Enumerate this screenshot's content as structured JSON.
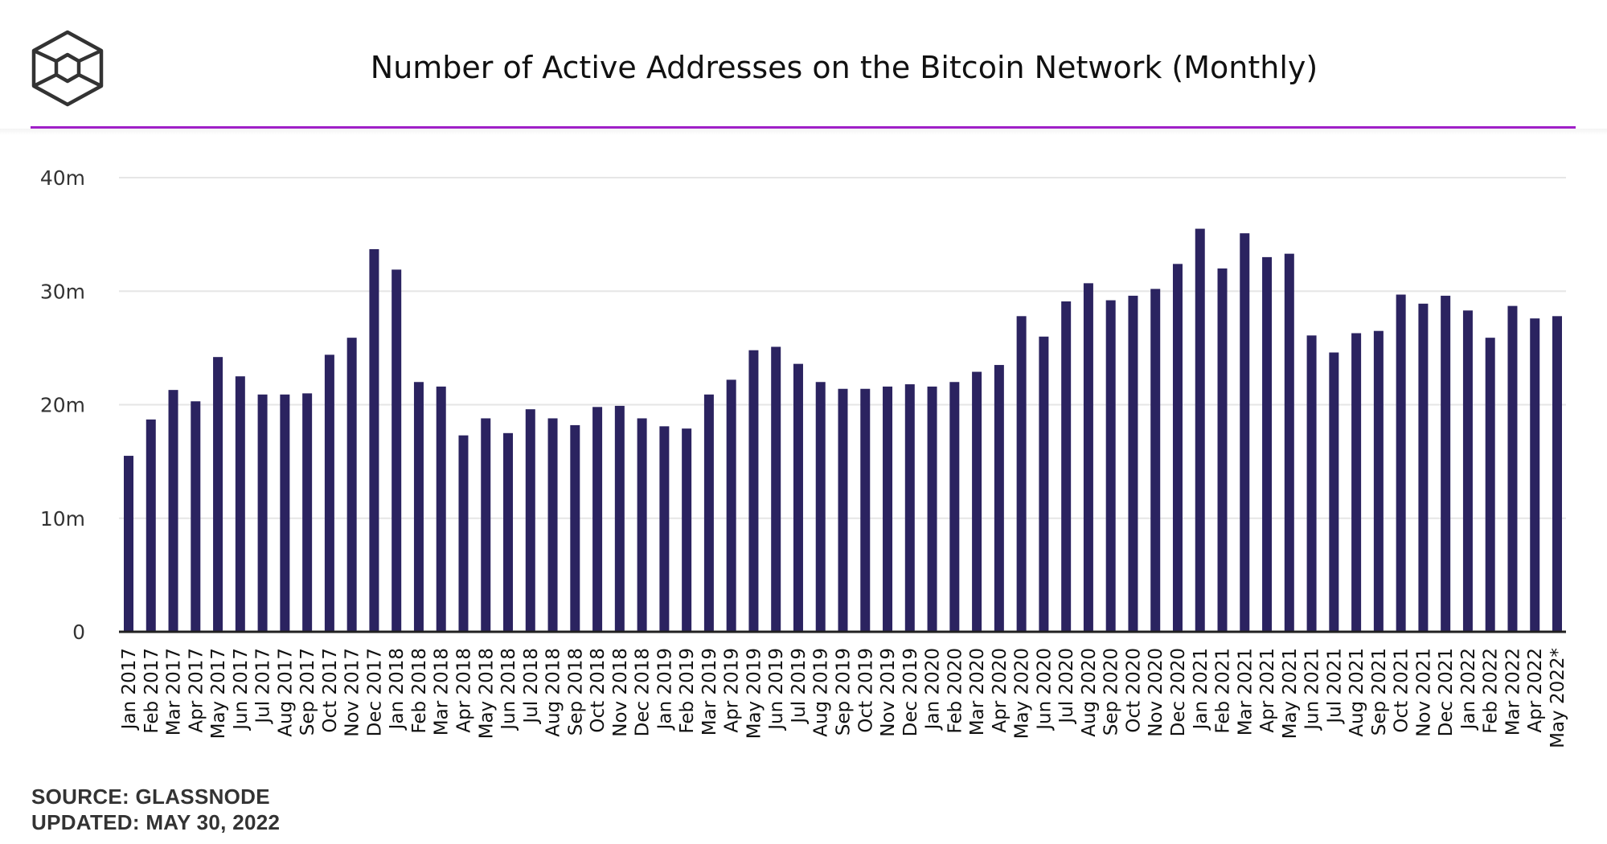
{
  "header": {
    "title": "Number of Active Addresses on the Bitcoin Network (Monthly)"
  },
  "footer": {
    "source": "SOURCE: GLASSNODE",
    "updated": "UPDATED: MAY 30, 2022"
  },
  "colors": {
    "bar": "#2b2360",
    "accent": "#a020c8",
    "grid": "#e6e6e6",
    "axis": "#222222",
    "text": "#333333"
  },
  "chart_data": {
    "type": "bar",
    "title": "Number of Active Addresses on the Bitcoin Network (Monthly)",
    "xlabel": "",
    "ylabel": "",
    "ylim": [
      0,
      40
    ],
    "unit": "m",
    "yticks": [
      {
        "value": 0,
        "label": "0"
      },
      {
        "value": 10,
        "label": "10m"
      },
      {
        "value": 20,
        "label": "20m"
      },
      {
        "value": 30,
        "label": "30m"
      },
      {
        "value": 40,
        "label": "40m"
      }
    ],
    "grid": true,
    "categories": [
      "Jan 2017",
      "Feb 2017",
      "Mar 2017",
      "Apr 2017",
      "May 2017",
      "Jun 2017",
      "Jul 2017",
      "Aug 2017",
      "Sep 2017",
      "Oct 2017",
      "Nov 2017",
      "Dec 2017",
      "Jan 2018",
      "Feb 2018",
      "Mar 2018",
      "Apr 2018",
      "May 2018",
      "Jun 2018",
      "Jul 2018",
      "Aug 2018",
      "Sep 2018",
      "Oct 2018",
      "Nov 2018",
      "Dec 2018",
      "Jan 2019",
      "Feb 2019",
      "Mar 2019",
      "Apr 2019",
      "May 2019",
      "Jun 2019",
      "Jul 2019",
      "Aug 2019",
      "Sep 2019",
      "Oct 2019",
      "Nov 2019",
      "Dec 2019",
      "Jan 2020",
      "Feb 2020",
      "Mar 2020",
      "Apr 2020",
      "May 2020",
      "Jun 2020",
      "Jul 2020",
      "Aug 2020",
      "Sep 2020",
      "Oct 2020",
      "Nov 2020",
      "Dec 2020",
      "Jan 2021",
      "Feb 2021",
      "Mar 2021",
      "Apr 2021",
      "May 2021",
      "Jun 2021",
      "Jul 2021",
      "Aug 2021",
      "Sep 2021",
      "Oct 2021",
      "Nov 2021",
      "Dec 2021",
      "Jan 2022",
      "Feb 2022",
      "Mar 2022",
      "Apr 2022",
      "May 2022*"
    ],
    "values": [
      15.5,
      18.7,
      21.3,
      20.3,
      24.2,
      22.5,
      20.9,
      20.9,
      21.0,
      24.4,
      25.9,
      33.7,
      31.9,
      22.0,
      21.6,
      17.3,
      18.8,
      17.5,
      19.6,
      18.8,
      18.2,
      19.8,
      19.9,
      18.8,
      18.1,
      17.9,
      20.9,
      22.2,
      24.8,
      25.1,
      23.6,
      22.0,
      21.4,
      21.4,
      21.6,
      21.8,
      21.6,
      22.0,
      22.9,
      23.5,
      27.8,
      26.0,
      29.1,
      30.7,
      29.2,
      29.6,
      30.2,
      32.4,
      35.5,
      32.0,
      35.1,
      33.0,
      33.3,
      26.1,
      24.6,
      26.3,
      26.5,
      29.7,
      28.9,
      29.6,
      28.3,
      25.9,
      28.7,
      27.6,
      27.8
    ]
  }
}
